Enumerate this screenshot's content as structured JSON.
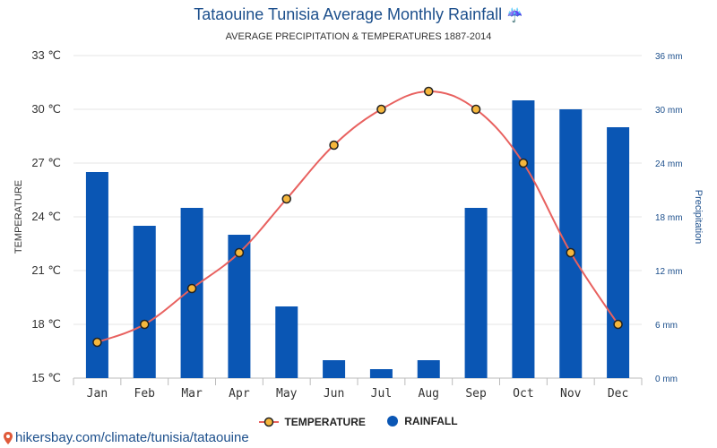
{
  "title": "Tataouine Tunisia Average Monthly Rainfall",
  "title_icon": "umbrella-rain-icon",
  "subtitle": "AVERAGE PRECIPITATION & TEMPERATURES 1887-2014",
  "source_link": "hikersbay.com/climate/tunisia/tataouine",
  "source_icon": "location-pin-icon",
  "chart_data": {
    "type": "bar+line",
    "categories": [
      "Jan",
      "Feb",
      "Mar",
      "Apr",
      "May",
      "Jun",
      "Jul",
      "Aug",
      "Sep",
      "Oct",
      "Nov",
      "Dec"
    ],
    "series": [
      {
        "name": "TEMPERATURE",
        "type": "line",
        "axis": "left",
        "unit": "℃",
        "values": [
          17,
          18,
          20,
          22,
          25,
          28,
          30,
          31,
          30,
          27,
          22,
          18
        ],
        "color": "#e8615f"
      },
      {
        "name": "RAINFALL",
        "type": "bar",
        "axis": "right",
        "unit": "mm",
        "values": [
          23,
          17,
          19,
          16,
          8,
          2,
          1,
          2,
          19,
          31,
          30,
          28
        ],
        "color": "#0a56b4"
      }
    ],
    "left_axis": {
      "label": "TEMPERATURE",
      "range": [
        15,
        33
      ],
      "ticks": [
        "15 ℃",
        "18 ℃",
        "21 ℃",
        "24 ℃",
        "27 ℃",
        "30 ℃",
        "33 ℃"
      ]
    },
    "right_axis": {
      "label": "Precipitation",
      "range": [
        0,
        36
      ],
      "ticks": [
        "0 mm",
        "6 mm",
        "12 mm",
        "18 mm",
        "24 mm",
        "30 mm",
        "36 mm"
      ]
    },
    "legend": [
      "TEMPERATURE",
      "RAINFALL"
    ],
    "legend_position": "bottom-center",
    "grid": true
  },
  "colors": {
    "title": "#1c4f8c",
    "bar": "#0a56b4",
    "line": "#e8615f",
    "marker_fill": "#f6b73c"
  }
}
